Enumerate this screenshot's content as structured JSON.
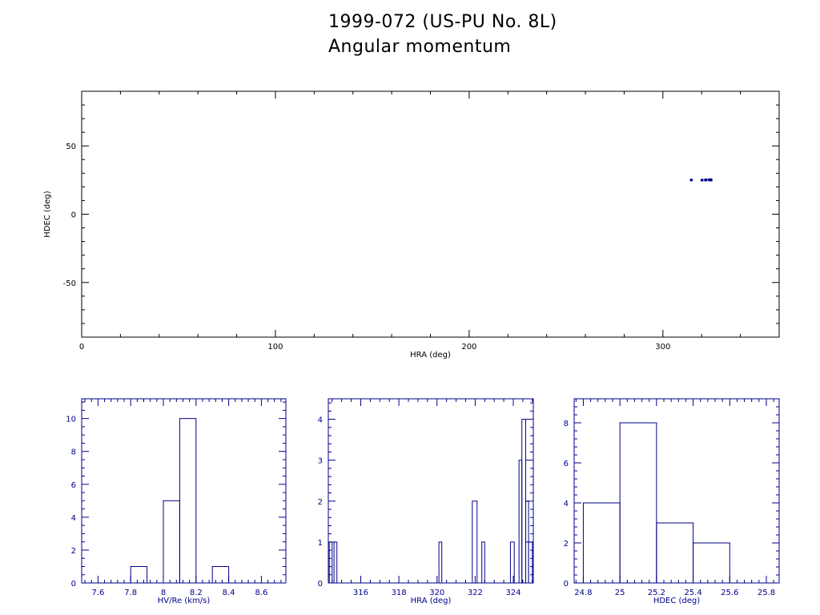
{
  "header": {
    "title": "1999-072 (US-PU No. 8L)",
    "subtitle": "Angular momentum"
  },
  "chart_data": [
    {
      "type": "scatter",
      "name": "sky-position",
      "xlabel": "HRA (deg)",
      "ylabel": "HDEC (deg)",
      "xlim": [
        0,
        360
      ],
      "ylim": [
        -90,
        90
      ],
      "xticks": [
        0,
        100,
        200,
        300
      ],
      "yticks": [
        -50,
        0,
        50
      ],
      "color": "#00008b",
      "points": [
        [
          314.6,
          25.0
        ],
        [
          314.7,
          25.1
        ],
        [
          320.1,
          24.9
        ],
        [
          320.3,
          25.0
        ],
        [
          321.9,
          25.1
        ],
        [
          322.0,
          25.0
        ],
        [
          322.1,
          25.2
        ],
        [
          322.4,
          25.1
        ],
        [
          323.9,
          25.2
        ],
        [
          324.0,
          25.3
        ],
        [
          324.3,
          25.1
        ],
        [
          324.4,
          25.0
        ],
        [
          324.5,
          25.2
        ],
        [
          324.6,
          25.3
        ],
        [
          324.6,
          25.1
        ],
        [
          324.7,
          25.0
        ],
        [
          324.7,
          25.2
        ],
        [
          324.8,
          25.1
        ],
        [
          324.8,
          25.3
        ],
        [
          324.9,
          25.0
        ],
        [
          324.9,
          25.2
        ]
      ]
    },
    {
      "type": "histogram",
      "name": "hist-velocity",
      "xlabel": "HV/Re (km/s)",
      "xlim": [
        7.5,
        8.75
      ],
      "ylim": [
        0,
        11.2
      ],
      "xticks": [
        7.6,
        7.8,
        8,
        8.2,
        8.4,
        8.6
      ],
      "xtick_labels": [
        "7.6",
        "7.8",
        "8",
        "8.2",
        "8.4",
        "8.6"
      ],
      "yticks": [
        0,
        2,
        4,
        6,
        8,
        10
      ],
      "bins": [
        [
          7.8,
          7.9,
          1
        ],
        [
          8.0,
          8.1,
          5
        ],
        [
          8.1,
          8.2,
          10
        ],
        [
          8.3,
          8.4,
          1
        ]
      ]
    },
    {
      "type": "histogram",
      "name": "hist-hra",
      "xlabel": "HRA (deg)",
      "xlim": [
        314.3,
        325.05
      ],
      "ylim": [
        0,
        4.5
      ],
      "xticks": [
        316,
        318,
        320,
        322,
        324
      ],
      "xtick_labels": [
        "316",
        "318",
        "320",
        "322",
        "324"
      ],
      "yticks": [
        0,
        1,
        2,
        3,
        4
      ],
      "bins": [
        [
          314.35,
          314.5,
          1
        ],
        [
          314.6,
          314.75,
          1
        ],
        [
          320.1,
          320.25,
          1
        ],
        [
          321.85,
          322.1,
          2
        ],
        [
          322.35,
          322.5,
          1
        ],
        [
          323.85,
          324.05,
          1
        ],
        [
          324.3,
          324.45,
          3
        ],
        [
          324.45,
          324.65,
          4
        ],
        [
          324.65,
          324.8,
          2
        ],
        [
          324.8,
          325.0,
          1
        ]
      ]
    },
    {
      "type": "histogram",
      "name": "hist-hdec",
      "xlabel": "HDEC (deg)",
      "xlim": [
        24.75,
        25.87
      ],
      "ylim": [
        0,
        9.2
      ],
      "xticks": [
        24.8,
        25,
        25.2,
        25.4,
        25.6,
        25.8
      ],
      "xtick_labels": [
        "24.8",
        "25",
        "25.2",
        "25.4",
        "25.6",
        "25.8"
      ],
      "yticks": [
        0,
        2,
        4,
        6,
        8
      ],
      "bins": [
        [
          24.8,
          25.0,
          4
        ],
        [
          25.0,
          25.2,
          8
        ],
        [
          25.2,
          25.4,
          3
        ],
        [
          25.4,
          25.6,
          2
        ]
      ]
    }
  ]
}
